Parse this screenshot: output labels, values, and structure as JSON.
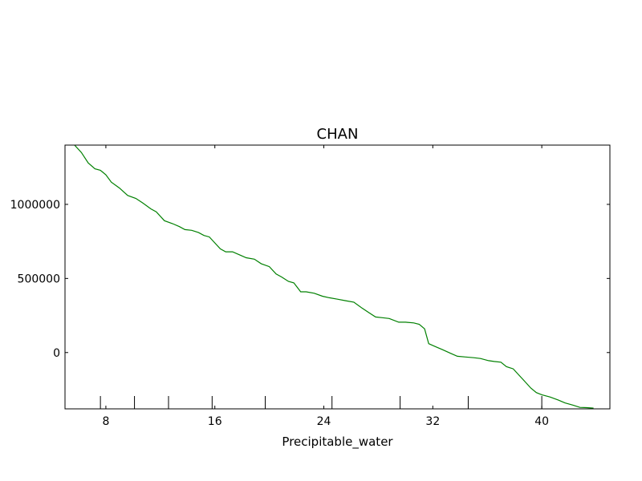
{
  "chart_data": {
    "type": "line",
    "title": "CHAN",
    "xlabel": "Precipitable_water",
    "ylabel": "",
    "xlim": [
      5,
      45
    ],
    "ylim": [
      -380000,
      1400000
    ],
    "x_ticks": [
      8,
      16,
      24,
      32,
      40
    ],
    "x_tick_labels": [
      "8",
      "16",
      "24",
      "32",
      "40"
    ],
    "y_ticks": [
      0,
      500000,
      1000000
    ],
    "y_tick_labels": [
      "0",
      "500000",
      "1000000"
    ],
    "rug": [
      7.6,
      10.1,
      12.6,
      15.8,
      19.7,
      24.6,
      29.6,
      34.6,
      40.0
    ],
    "grid": false,
    "color": "#008000",
    "series": [
      {
        "x": [
          5.7,
          6.2,
          6.7,
          7.2,
          7.6,
          8.0,
          8.4,
          9.0,
          9.6,
          10.2,
          10.7,
          11.3,
          11.7,
          12.3,
          12.9,
          13.4,
          13.8,
          14.3,
          14.8,
          15.2,
          15.6,
          16.0,
          16.4,
          16.8,
          17.3,
          17.8,
          18.3,
          18.9,
          19.4,
          20.0,
          20.5,
          20.9,
          21.4,
          21.8,
          22.3,
          22.7,
          23.3,
          23.9,
          24.4,
          25.0,
          25.6,
          26.2,
          26.8,
          27.3,
          27.8,
          28.3,
          28.8,
          29.5,
          30.0,
          30.6,
          31.0,
          31.4,
          31.7,
          32.2,
          32.7,
          33.3,
          33.8,
          34.4,
          35.0,
          35.5,
          36.1,
          36.5,
          37.0,
          37.4,
          37.9,
          38.3,
          38.7,
          39.2,
          39.6,
          40.0,
          40.6,
          41.2,
          41.7,
          42.3,
          42.8,
          43.3,
          43.8
        ],
        "y": [
          1400000,
          1350000,
          1280000,
          1240000,
          1230000,
          1200000,
          1150000,
          1110000,
          1060000,
          1040000,
          1010000,
          970000,
          950000,
          890000,
          870000,
          850000,
          830000,
          825000,
          810000,
          790000,
          780000,
          740000,
          700000,
          680000,
          680000,
          660000,
          640000,
          630000,
          600000,
          580000,
          530000,
          510000,
          480000,
          470000,
          410000,
          410000,
          400000,
          380000,
          370000,
          360000,
          350000,
          340000,
          300000,
          270000,
          240000,
          235000,
          230000,
          205000,
          205000,
          200000,
          190000,
          160000,
          60000,
          40000,
          20000,
          -5000,
          -25000,
          -30000,
          -35000,
          -40000,
          -55000,
          -60000,
          -65000,
          -95000,
          -110000,
          -150000,
          -190000,
          -240000,
          -270000,
          -285000,
          -300000,
          -320000,
          -340000,
          -355000,
          -370000,
          -372000,
          -375000
        ]
      }
    ]
  }
}
